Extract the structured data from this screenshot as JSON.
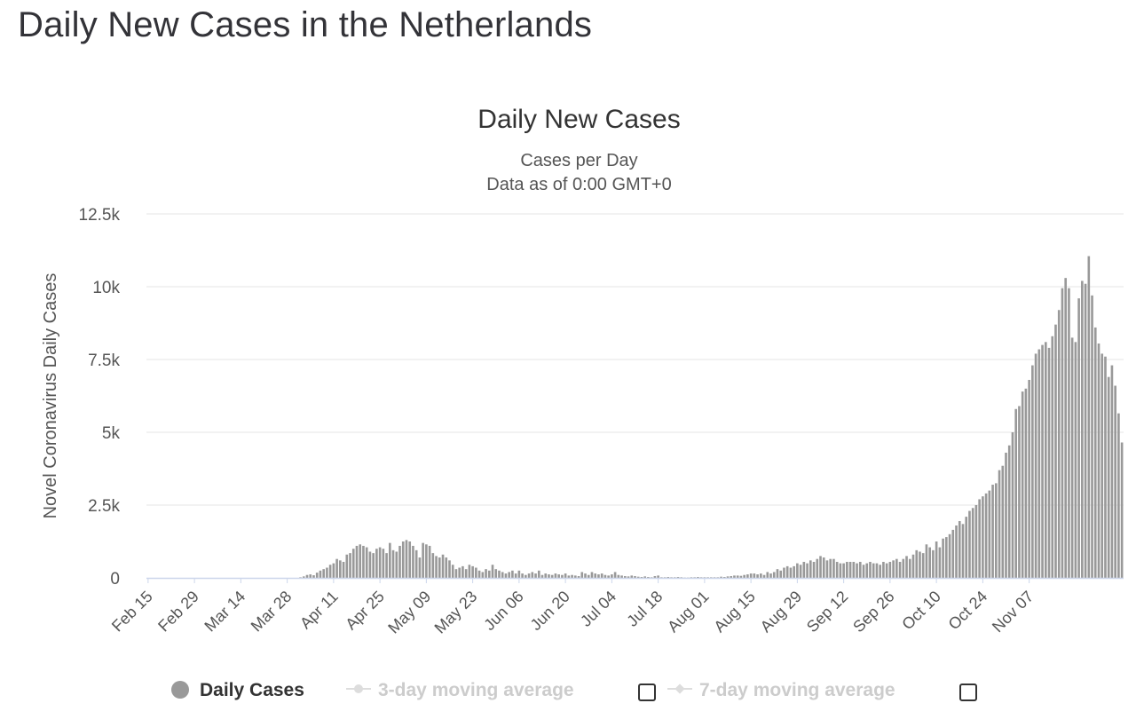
{
  "page": {
    "title": "Daily New Cases in the Netherlands"
  },
  "legend": {
    "daily_label": "Daily Cases",
    "ma3_label": "3-day moving average",
    "ma7_label": "7-day moving average"
  },
  "colors": {
    "bar": "#999999",
    "grid": "#e6e6e6",
    "axis": "#ccd6eb",
    "muted": "#cccccc"
  },
  "chart_data": {
    "type": "bar",
    "title": "Daily New Cases",
    "subtitle": [
      "Cases per Day",
      "Data as of 0:00 GMT+0"
    ],
    "ylabel": "Novel Coronavirus Daily Cases",
    "xlabel": "",
    "ylim": [
      0,
      12500
    ],
    "yticks": [
      0,
      2500,
      5000,
      7500,
      10000,
      12500
    ],
    "ytick_labels": [
      "0",
      "2.5k",
      "5k",
      "7.5k",
      "10k",
      "12.5k"
    ],
    "xtick_labels": [
      "Feb 15",
      "Feb 29",
      "Mar 14",
      "Mar 28",
      "Apr 11",
      "Apr 25",
      "May 09",
      "May 23",
      "Jun 06",
      "Jun 20",
      "Jul 04",
      "Jul 18",
      "Aug 01",
      "Aug 15",
      "Aug 29",
      "Sep 12",
      "Sep 26",
      "Oct 10",
      "Oct 24",
      "Nov 07"
    ],
    "xtick_step_days": 14,
    "start_date": "Feb 15",
    "grid": true,
    "legend_position": "bottom",
    "series": [
      {
        "name": "Daily Cases",
        "values": [
          0,
          0,
          0,
          0,
          0,
          0,
          0,
          0,
          0,
          0,
          0,
          0,
          0,
          0,
          0,
          0,
          0,
          0,
          0,
          0,
          0,
          0,
          0,
          0,
          0,
          0,
          0,
          0,
          0,
          0,
          0,
          0,
          0,
          0,
          0,
          0,
          0,
          0,
          0,
          0,
          0,
          0,
          0,
          0,
          0,
          0,
          20,
          50,
          100,
          120,
          90,
          180,
          250,
          300,
          350,
          450,
          500,
          650,
          600,
          550,
          800,
          850,
          1000,
          1100,
          1150,
          1100,
          1050,
          900,
          850,
          1000,
          1050,
          1000,
          850,
          1200,
          950,
          900,
          1100,
          1250,
          1300,
          1250,
          1100,
          950,
          700,
          1200,
          1150,
          1100,
          850,
          750,
          700,
          800,
          700,
          600,
          450,
          300,
          350,
          400,
          300,
          450,
          400,
          350,
          250,
          200,
          300,
          250,
          450,
          300,
          250,
          200,
          150,
          200,
          250,
          150,
          250,
          150,
          100,
          150,
          200,
          150,
          250,
          100,
          150,
          120,
          100,
          150,
          120,
          100,
          150,
          80,
          100,
          80,
          60,
          200,
          150,
          100,
          200,
          150,
          120,
          150,
          100,
          80,
          120,
          200,
          100,
          80,
          60,
          50,
          80,
          60,
          40,
          30,
          50,
          30,
          20,
          60,
          80,
          20,
          20,
          30,
          20,
          20,
          30,
          20,
          10,
          10,
          20,
          20,
          30,
          20,
          20,
          20,
          20,
          20,
          20,
          40,
          30,
          50,
          60,
          80,
          80,
          70,
          100,
          120,
          150,
          150,
          120,
          150,
          100,
          200,
          150,
          200,
          300,
          250,
          350,
          400,
          350,
          400,
          500,
          450,
          550,
          500,
          600,
          550,
          650,
          750,
          700,
          600,
          650,
          650,
          550,
          500,
          500,
          550,
          550,
          550,
          500,
          550,
          450,
          500,
          550,
          500,
          500,
          450,
          550,
          500,
          550,
          600,
          650,
          550,
          650,
          750,
          650,
          800,
          950,
          900,
          850,
          1150,
          1050,
          950,
          1250,
          1050,
          1350,
          1400,
          1500,
          1650,
          1800,
          1950,
          1850,
          2100,
          2300,
          2400,
          2500,
          2700,
          2800,
          2900,
          3000,
          3200,
          3250,
          3700,
          3850,
          4300,
          4550,
          5000,
          5800,
          5900,
          6400,
          6500,
          6800,
          7300,
          7700,
          7850,
          8000,
          8100,
          7900,
          8300,
          8700,
          9200,
          9950,
          10300,
          9950,
          8250,
          8100,
          9600,
          10200,
          10100,
          11050,
          9700,
          8600,
          8050,
          7700,
          7600,
          6900,
          7300,
          6600,
          5650,
          4650
        ]
      }
    ]
  }
}
